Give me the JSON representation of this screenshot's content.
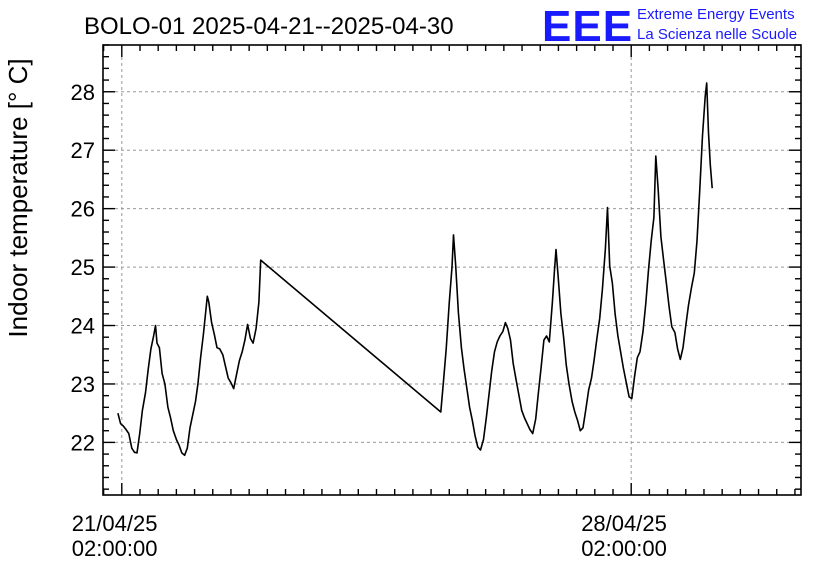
{
  "chart_data": {
    "type": "line",
    "title": "BOLO-01 2025-04-21--2025-04-30",
    "xlabel": "",
    "ylabel": "Indoor temperature [° C]",
    "ylim": [
      21.1,
      28.8
    ],
    "xlim_hours": [
      -6.2,
      224
    ],
    "yticks": [
      22,
      23,
      24,
      25,
      26,
      27,
      28
    ],
    "xticks": [
      {
        "hour": 0,
        "line1": "21/04/25",
        "line2": "02:00:00"
      },
      {
        "hour": 168,
        "line1": "28/04/25",
        "line2": "02:00:00"
      }
    ],
    "grid": true,
    "series": [
      {
        "name": "",
        "points": [
          [
            -1.3,
            22.5
          ],
          [
            -0.4,
            22.32
          ],
          [
            0.5,
            22.28
          ],
          [
            1.4,
            22.22
          ],
          [
            2.3,
            22.15
          ],
          [
            3.3,
            21.9
          ],
          [
            4.2,
            21.83
          ],
          [
            5.0,
            21.82
          ],
          [
            5.9,
            22.15
          ],
          [
            6.8,
            22.55
          ],
          [
            7.8,
            22.85
          ],
          [
            8.7,
            23.25
          ],
          [
            9.6,
            23.6
          ],
          [
            10.5,
            23.82
          ],
          [
            11.1,
            24.0
          ],
          [
            11.6,
            23.7
          ],
          [
            12.4,
            23.62
          ],
          [
            13.3,
            23.18
          ],
          [
            14.2,
            23.0
          ],
          [
            15.2,
            22.6
          ],
          [
            16.1,
            22.42
          ],
          [
            17.0,
            22.2
          ],
          [
            18.0,
            22.05
          ],
          [
            18.9,
            21.95
          ],
          [
            19.8,
            21.82
          ],
          [
            20.7,
            21.78
          ],
          [
            21.6,
            21.9
          ],
          [
            22.5,
            22.25
          ],
          [
            23.4,
            22.48
          ],
          [
            24.3,
            22.7
          ],
          [
            25.1,
            23.0
          ],
          [
            26.0,
            23.45
          ],
          [
            26.9,
            23.85
          ],
          [
            27.7,
            24.25
          ],
          [
            28.2,
            24.5
          ],
          [
            28.7,
            24.4
          ],
          [
            29.6,
            24.05
          ],
          [
            30.5,
            23.85
          ],
          [
            31.4,
            23.62
          ],
          [
            32.3,
            23.6
          ],
          [
            33.3,
            23.5
          ],
          [
            34.2,
            23.3
          ],
          [
            35.1,
            23.1
          ],
          [
            36.0,
            23.02
          ],
          [
            36.9,
            22.92
          ],
          [
            37.8,
            23.15
          ],
          [
            38.8,
            23.4
          ],
          [
            39.7,
            23.55
          ],
          [
            40.6,
            23.75
          ],
          [
            41.5,
            24.02
          ],
          [
            42.4,
            23.78
          ],
          [
            43.3,
            23.7
          ],
          [
            44.3,
            23.95
          ],
          [
            45.2,
            24.4
          ],
          [
            45.8,
            25.12
          ],
          [
            105.2,
            22.52
          ],
          [
            106.1,
            23.05
          ],
          [
            107.0,
            23.6
          ],
          [
            108.0,
            24.4
          ],
          [
            108.9,
            25.0
          ],
          [
            109.4,
            25.55
          ],
          [
            110.1,
            25.05
          ],
          [
            111.0,
            24.22
          ],
          [
            112.0,
            23.62
          ],
          [
            112.9,
            23.25
          ],
          [
            113.8,
            22.92
          ],
          [
            114.7,
            22.6
          ],
          [
            115.6,
            22.38
          ],
          [
            116.5,
            22.12
          ],
          [
            117.4,
            21.92
          ],
          [
            118.3,
            21.87
          ],
          [
            119.3,
            22.05
          ],
          [
            120.2,
            22.42
          ],
          [
            121.1,
            22.82
          ],
          [
            122.0,
            23.22
          ],
          [
            122.9,
            23.55
          ],
          [
            123.8,
            23.72
          ],
          [
            124.7,
            23.82
          ],
          [
            125.7,
            23.9
          ],
          [
            126.5,
            24.05
          ],
          [
            127.3,
            23.95
          ],
          [
            128.2,
            23.75
          ],
          [
            129.1,
            23.35
          ],
          [
            130.0,
            23.08
          ],
          [
            131.0,
            22.8
          ],
          [
            131.9,
            22.55
          ],
          [
            132.8,
            22.42
          ],
          [
            133.7,
            22.32
          ],
          [
            134.6,
            22.22
          ],
          [
            135.5,
            22.15
          ],
          [
            136.5,
            22.4
          ],
          [
            137.4,
            22.85
          ],
          [
            138.3,
            23.28
          ],
          [
            139.2,
            23.75
          ],
          [
            140.1,
            23.82
          ],
          [
            141.0,
            23.72
          ],
          [
            142.0,
            24.4
          ],
          [
            142.7,
            24.95
          ],
          [
            143.2,
            25.3
          ],
          [
            143.9,
            24.85
          ],
          [
            144.8,
            24.2
          ],
          [
            145.7,
            23.8
          ],
          [
            146.6,
            23.32
          ],
          [
            147.5,
            23.0
          ],
          [
            148.5,
            22.7
          ],
          [
            149.4,
            22.52
          ],
          [
            150.3,
            22.38
          ],
          [
            151.2,
            22.2
          ],
          [
            152.1,
            22.25
          ],
          [
            153.0,
            22.55
          ],
          [
            154.0,
            22.9
          ],
          [
            154.9,
            23.1
          ],
          [
            155.8,
            23.42
          ],
          [
            156.7,
            23.78
          ],
          [
            157.6,
            24.12
          ],
          [
            158.5,
            24.62
          ],
          [
            159.5,
            25.32
          ],
          [
            160.2,
            26.02
          ],
          [
            160.9,
            25.02
          ],
          [
            161.8,
            24.72
          ],
          [
            162.7,
            24.2
          ],
          [
            163.6,
            23.82
          ],
          [
            164.5,
            23.55
          ],
          [
            165.4,
            23.28
          ],
          [
            166.4,
            23.02
          ],
          [
            167.3,
            22.78
          ],
          [
            168.2,
            22.75
          ],
          [
            169.1,
            23.12
          ],
          [
            170.0,
            23.45
          ],
          [
            170.9,
            23.55
          ],
          [
            171.9,
            23.9
          ],
          [
            172.8,
            24.38
          ],
          [
            173.7,
            24.95
          ],
          [
            174.6,
            25.45
          ],
          [
            175.5,
            25.85
          ],
          [
            176.1,
            26.9
          ],
          [
            176.9,
            26.32
          ],
          [
            177.8,
            25.52
          ],
          [
            178.7,
            25.12
          ],
          [
            179.6,
            24.72
          ],
          [
            180.5,
            24.32
          ],
          [
            181.4,
            23.98
          ],
          [
            182.4,
            23.88
          ],
          [
            183.3,
            23.6
          ],
          [
            184.2,
            23.42
          ],
          [
            185.1,
            23.62
          ],
          [
            186.0,
            24.0
          ],
          [
            186.9,
            24.35
          ],
          [
            187.9,
            24.65
          ],
          [
            188.8,
            24.9
          ],
          [
            189.7,
            25.45
          ],
          [
            190.6,
            26.3
          ],
          [
            191.5,
            27.25
          ],
          [
            192.4,
            27.92
          ],
          [
            192.9,
            28.15
          ],
          [
            193.5,
            27.3
          ],
          [
            194.1,
            26.75
          ],
          [
            194.7,
            26.35
          ]
        ]
      }
    ]
  },
  "branding": {
    "logo_text": "EEE",
    "org_line1": "Extreme Energy Events",
    "org_line2": "La Scienza nelle Scuole"
  }
}
